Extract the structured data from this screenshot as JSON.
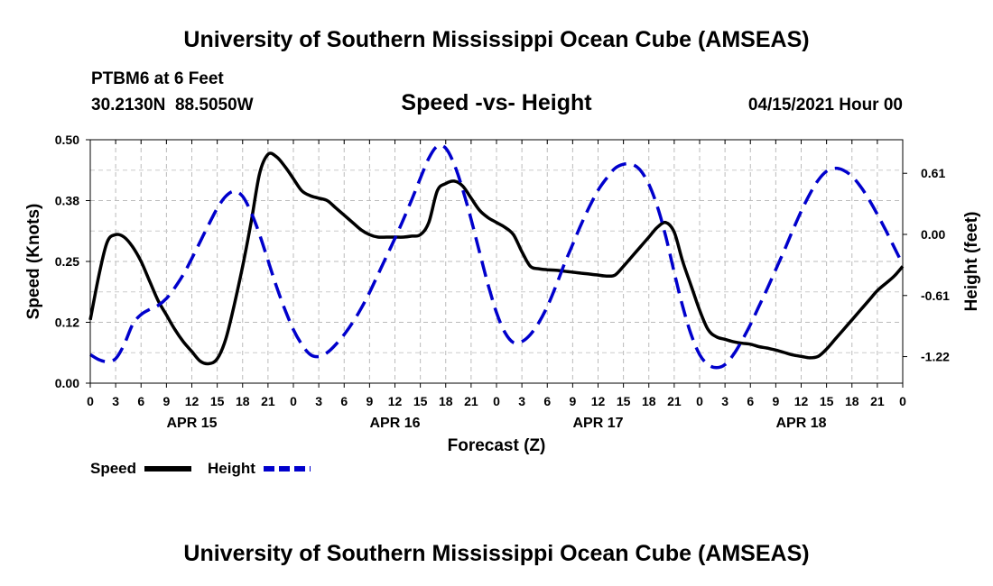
{
  "header": {
    "title": "University of Southern Mississippi Ocean Cube (AMSEAS)",
    "station": "PTBM6 at 6 Feet",
    "coordinates": "30.2130N  88.5050W",
    "subtitle": "Speed -vs- Height",
    "date": "04/15/2021 Hour 00"
  },
  "footer": {
    "title": "University of Southern Mississippi Ocean Cube (AMSEAS)"
  },
  "chart_data": {
    "type": "line",
    "title": "Speed -vs- Height",
    "xlabel": "Forecast (Z)",
    "ylabel": "Speed (Knots)",
    "y2label": "Height (feet)",
    "xlim": [
      0,
      96
    ],
    "ylim": [
      0,
      0.5
    ],
    "y2lim": [
      -1.485,
      0.945
    ],
    "grid": true,
    "x_tick_labels": [
      "0",
      "3",
      "6",
      "9",
      "12",
      "15",
      "18",
      "21",
      "0",
      "3",
      "6",
      "9",
      "12",
      "15",
      "18",
      "21",
      "0",
      "3",
      "6",
      "9",
      "12",
      "15",
      "18",
      "21",
      "0",
      "3",
      "6",
      "9",
      "12",
      "15",
      "18",
      "21",
      "0"
    ],
    "x_date_labels": [
      {
        "label": "APR 15",
        "hour": 12
      },
      {
        "label": "APR 16",
        "hour": 36
      },
      {
        "label": "APR 17",
        "hour": 60
      },
      {
        "label": "APR 18",
        "hour": 84
      }
    ],
    "y_tick_labels": [
      "0.00",
      "0.12",
      "0.25",
      "0.38",
      "0.50"
    ],
    "y_ticks": [
      0,
      0.125,
      0.25,
      0.375,
      0.5
    ],
    "y2_tick_labels": [
      "-1.22",
      "-0.61",
      "0.00",
      "0.61"
    ],
    "y2_ticks": [
      -1.22,
      -0.61,
      0.0,
      0.61
    ],
    "legend_position": "bottom-left",
    "series": [
      {
        "name": "Speed",
        "axis": "left",
        "color": "#000000",
        "style": "solid",
        "x": [
          0,
          1,
          2,
          3,
          4,
          5,
          6,
          7,
          8,
          9,
          10,
          11,
          12,
          13,
          14,
          15,
          16,
          17,
          18,
          19,
          20,
          21,
          22,
          23,
          24,
          25,
          26,
          27,
          28,
          29,
          30,
          31,
          32,
          33,
          34,
          35,
          36,
          37,
          38,
          39,
          40,
          41,
          42,
          43,
          44,
          45,
          46,
          47,
          48,
          49,
          50,
          51,
          52,
          53,
          54,
          55,
          56,
          57,
          58,
          59,
          60,
          61,
          62,
          63,
          64,
          65,
          66,
          67,
          68,
          69,
          70,
          71,
          72,
          73,
          74,
          75,
          76,
          77,
          78,
          79,
          80,
          81,
          82,
          83,
          84,
          85,
          86,
          87,
          88,
          89,
          90,
          91,
          92,
          93,
          94,
          95,
          96
        ],
        "values": [
          0.13,
          0.22,
          0.29,
          0.305,
          0.3,
          0.28,
          0.25,
          0.21,
          0.17,
          0.14,
          0.11,
          0.085,
          0.065,
          0.045,
          0.04,
          0.05,
          0.09,
          0.16,
          0.24,
          0.33,
          0.43,
          0.47,
          0.465,
          0.445,
          0.42,
          0.395,
          0.385,
          0.38,
          0.375,
          0.36,
          0.345,
          0.33,
          0.315,
          0.305,
          0.3,
          0.3,
          0.3,
          0.3,
          0.302,
          0.305,
          0.33,
          0.395,
          0.41,
          0.415,
          0.405,
          0.38,
          0.355,
          0.34,
          0.33,
          0.32,
          0.305,
          0.27,
          0.24,
          0.235,
          0.233,
          0.232,
          0.23,
          0.228,
          0.226,
          0.224,
          0.222,
          0.22,
          0.222,
          0.24,
          0.26,
          0.28,
          0.3,
          0.32,
          0.33,
          0.31,
          0.25,
          0.2,
          0.15,
          0.11,
          0.095,
          0.09,
          0.085,
          0.082,
          0.08,
          0.075,
          0.072,
          0.068,
          0.063,
          0.058,
          0.055,
          0.052,
          0.055,
          0.07,
          0.09,
          0.11,
          0.13,
          0.15,
          0.17,
          0.19,
          0.205,
          0.22,
          0.24
        ]
      },
      {
        "name": "Height",
        "axis": "right",
        "color": "#0000cc",
        "style": "dashed",
        "x": [
          0,
          1,
          2,
          3,
          4,
          5,
          6,
          7,
          8,
          9,
          10,
          11,
          12,
          13,
          14,
          15,
          16,
          17,
          18,
          19,
          20,
          21,
          22,
          23,
          24,
          25,
          26,
          27,
          28,
          29,
          30,
          31,
          32,
          33,
          34,
          35,
          36,
          37,
          38,
          39,
          40,
          41,
          42,
          43,
          44,
          45,
          46,
          47,
          48,
          49,
          50,
          51,
          52,
          53,
          54,
          55,
          56,
          57,
          58,
          59,
          60,
          61,
          62,
          63,
          64,
          65,
          66,
          67,
          68,
          69,
          70,
          71,
          72,
          73,
          74,
          75,
          76,
          77,
          78,
          79,
          80,
          81,
          82,
          83,
          84,
          85,
          86,
          87,
          88,
          89,
          90,
          91,
          92,
          93,
          94,
          95,
          96
        ],
        "values": [
          -1.2,
          -1.25,
          -1.27,
          -1.24,
          -1.1,
          -0.9,
          -0.8,
          -0.75,
          -0.71,
          -0.64,
          -0.53,
          -0.4,
          -0.24,
          -0.07,
          0.1,
          0.26,
          0.38,
          0.43,
          0.38,
          0.22,
          0.0,
          -0.26,
          -0.52,
          -0.75,
          -0.95,
          -1.1,
          -1.2,
          -1.22,
          -1.18,
          -1.1,
          -1.0,
          -0.88,
          -0.74,
          -0.58,
          -0.4,
          -0.22,
          -0.04,
          0.15,
          0.35,
          0.56,
          0.76,
          0.88,
          0.86,
          0.7,
          0.45,
          0.15,
          -0.18,
          -0.5,
          -0.78,
          -0.98,
          -1.08,
          -1.07,
          -1.0,
          -0.88,
          -0.72,
          -0.52,
          -0.3,
          -0.1,
          0.1,
          0.28,
          0.44,
          0.56,
          0.66,
          0.7,
          0.7,
          0.64,
          0.5,
          0.28,
          -0.02,
          -0.38,
          -0.72,
          -1.0,
          -1.2,
          -1.3,
          -1.33,
          -1.3,
          -1.2,
          -1.06,
          -0.9,
          -0.72,
          -0.54,
          -0.35,
          -0.16,
          0.04,
          0.23,
          0.4,
          0.54,
          0.63,
          0.66,
          0.64,
          0.58,
          0.48,
          0.35,
          0.2,
          0.04,
          -0.13,
          -0.3
        ]
      }
    ]
  }
}
